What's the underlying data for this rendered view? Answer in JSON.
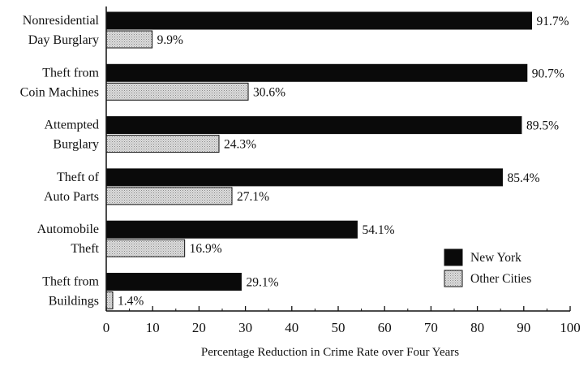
{
  "chart_data": {
    "type": "bar",
    "orientation": "horizontal",
    "title": "",
    "xlabel": "Percentage Reduction in Crime Rate over Four Years",
    "ylabel": "",
    "xlim": [
      0,
      100
    ],
    "xticks": [
      "0",
      "10",
      "20",
      "30",
      "40",
      "50",
      "60",
      "70",
      "80",
      "90",
      "100"
    ],
    "grid": false,
    "legend_position": "bottom-right",
    "categories": [
      [
        "Nonresidential",
        "Day Burglary"
      ],
      [
        "Theft from",
        "Coin Machines"
      ],
      [
        "Attempted",
        "Burglary"
      ],
      [
        "Theft of",
        "Auto Parts"
      ],
      [
        "Automobile",
        "Theft"
      ],
      [
        "Theft from",
        "Buildings"
      ]
    ],
    "series": [
      {
        "name": "New York",
        "color": "#0a0a0a",
        "values": [
          91.7,
          90.7,
          89.5,
          85.4,
          54.1,
          29.1
        ],
        "labels": [
          "91.7%",
          "90.7%",
          "89.5%",
          "85.4%",
          "54.1%",
          "29.1%"
        ]
      },
      {
        "name": "Other Cities",
        "color": "#d6d6d6",
        "pattern": "stipple",
        "values": [
          9.9,
          30.6,
          24.3,
          27.1,
          16.9,
          1.4
        ],
        "labels": [
          "9.9%",
          "30.6%",
          "24.3%",
          "27.1%",
          "16.9%",
          "1.4%"
        ]
      }
    ]
  }
}
